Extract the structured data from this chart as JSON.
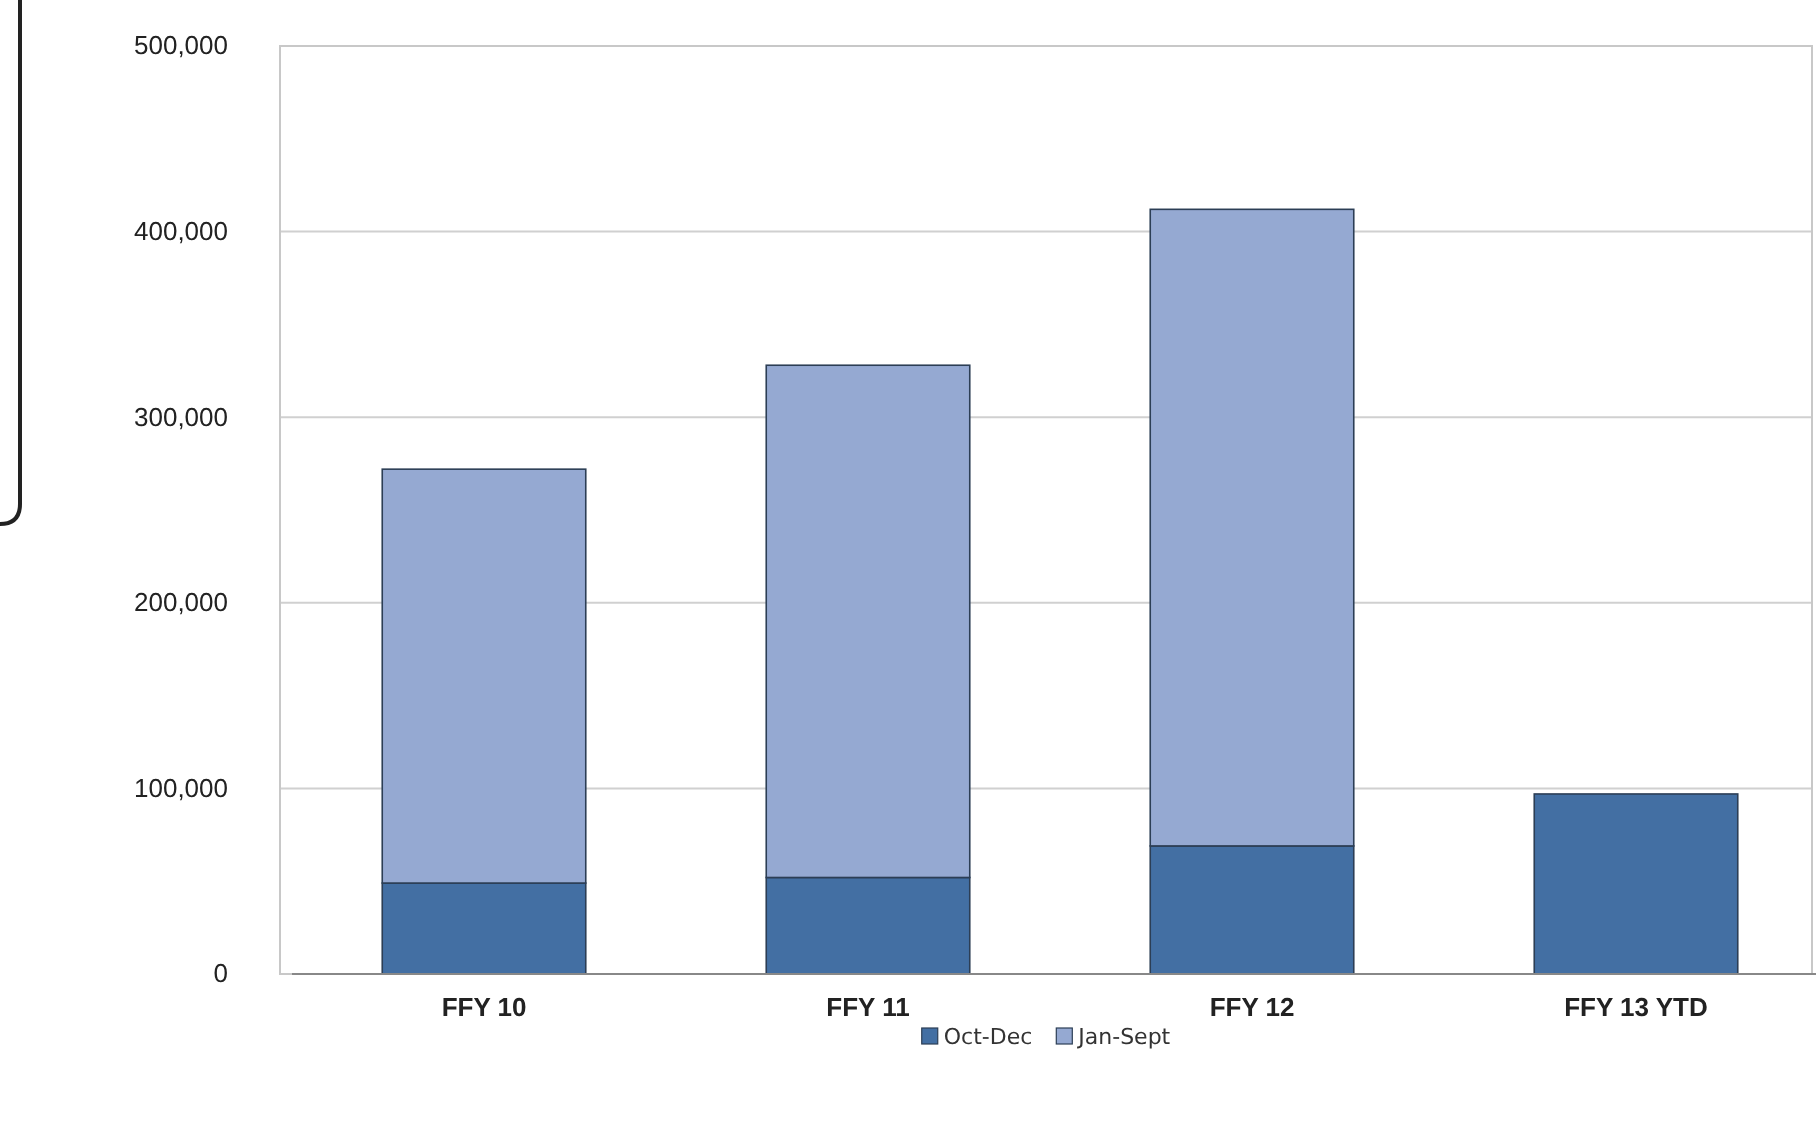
{
  "chart_data": {
    "type": "bar",
    "stacked": true,
    "categories": [
      "FFY 10",
      "FFY 11",
      "FFY 12",
      "FFY 13 YTD"
    ],
    "series": [
      {
        "name": "Oct-Dec",
        "color": "#436fa3",
        "values": [
          49000,
          52000,
          69000,
          97000
        ]
      },
      {
        "name": "Jan-Sept",
        "color": "#95a9d2",
        "values": [
          223000,
          276000,
          343000,
          null
        ]
      }
    ],
    "ylim": [
      0,
      500000
    ],
    "yticks": [
      {
        "value": 0,
        "label": "0"
      },
      {
        "value": 100000,
        "label": "100,000"
      },
      {
        "value": 200000,
        "label": "200,000"
      },
      {
        "value": 300000,
        "label": "300,000"
      },
      {
        "value": 400000,
        "label": "400,000"
      },
      {
        "value": 500000,
        "label": "500,000"
      }
    ],
    "grid": "y",
    "legend": "bottom"
  }
}
